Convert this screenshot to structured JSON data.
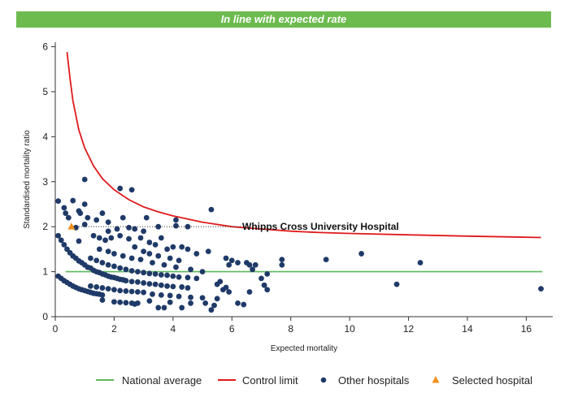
{
  "banner": {
    "text": "In line with expected rate",
    "color": "#6dbb4f"
  },
  "chart_data": {
    "type": "scatter",
    "title": "",
    "xlabel": "Expected mortality",
    "ylabel": "Standardised mortality ratio",
    "xlim": [
      0,
      16.9
    ],
    "ylim": [
      0,
      6.1
    ],
    "xticks": [
      0,
      2,
      4,
      6,
      8,
      10,
      12,
      14,
      16
    ],
    "yticks": [
      0,
      1,
      2,
      3,
      4,
      5,
      6
    ],
    "grid": false,
    "legend_position": "bottom",
    "national_average": {
      "name": "National average",
      "value": 1,
      "color": "#5cb85c"
    },
    "control_limit": {
      "name": "Control limit",
      "color": "#e0191b",
      "points": [
        [
          0.4,
          5.88
        ],
        [
          0.5,
          5.3
        ],
        [
          0.6,
          4.8
        ],
        [
          0.8,
          4.15
        ],
        [
          1.0,
          3.75
        ],
        [
          1.3,
          3.35
        ],
        [
          1.6,
          3.07
        ],
        [
          2.0,
          2.82
        ],
        [
          2.5,
          2.6
        ],
        [
          3.0,
          2.44
        ],
        [
          3.5,
          2.33
        ],
        [
          4.0,
          2.24
        ],
        [
          5.0,
          2.1
        ],
        [
          6.0,
          2.0
        ],
        [
          7.0,
          1.95
        ],
        [
          8.0,
          1.9
        ],
        [
          9.0,
          1.87
        ],
        [
          10.0,
          1.85
        ],
        [
          12.0,
          1.82
        ],
        [
          14.0,
          1.79
        ],
        [
          16.5,
          1.76
        ]
      ]
    },
    "series": [
      {
        "name": "Other hospitals",
        "color": "#1f3a68",
        "points": [
          [
            0.1,
            2.57
          ],
          [
            0.3,
            2.42
          ],
          [
            0.35,
            2.3
          ],
          [
            0.45,
            2.2
          ],
          [
            0.6,
            2.58
          ],
          [
            0.8,
            2.35
          ],
          [
            0.85,
            2.3
          ],
          [
            1.0,
            3.05
          ],
          [
            1.0,
            2.5
          ],
          [
            1.1,
            2.2
          ],
          [
            1.4,
            2.15
          ],
          [
            1.0,
            2.05
          ],
          [
            1.6,
            2.3
          ],
          [
            1.8,
            2.1
          ],
          [
            2.2,
            2.85
          ],
          [
            2.6,
            2.82
          ],
          [
            2.1,
            1.95
          ],
          [
            2.3,
            2.2
          ],
          [
            2.5,
            1.98
          ],
          [
            3.1,
            2.2
          ],
          [
            3.5,
            2.0
          ],
          [
            4.1,
            2.15
          ],
          [
            4.1,
            2.02
          ],
          [
            4.5,
            2.0
          ],
          [
            5.3,
            2.38
          ],
          [
            0.7,
            1.98
          ],
          [
            0.8,
            1.68
          ],
          [
            1.3,
            1.8
          ],
          [
            1.5,
            1.75
          ],
          [
            1.7,
            1.7
          ],
          [
            1.8,
            1.9
          ],
          [
            1.9,
            1.75
          ],
          [
            2.2,
            1.8
          ],
          [
            2.5,
            1.73
          ],
          [
            2.7,
            1.95
          ],
          [
            2.9,
            1.75
          ],
          [
            3.0,
            1.9
          ],
          [
            3.2,
            1.65
          ],
          [
            3.4,
            1.6
          ],
          [
            3.6,
            1.75
          ],
          [
            3.8,
            1.5
          ],
          [
            4.0,
            1.55
          ],
          [
            4.3,
            1.55
          ],
          [
            4.5,
            1.5
          ],
          [
            4.8,
            1.4
          ],
          [
            5.2,
            1.45
          ],
          [
            2.7,
            1.55
          ],
          [
            3.0,
            1.45
          ],
          [
            3.2,
            1.4
          ],
          [
            3.5,
            1.35
          ],
          [
            3.9,
            1.3
          ],
          [
            4.2,
            1.25
          ],
          [
            0.1,
            1.8
          ],
          [
            0.2,
            1.7
          ],
          [
            0.3,
            1.6
          ],
          [
            0.4,
            1.5
          ],
          [
            0.5,
            1.42
          ],
          [
            0.6,
            1.35
          ],
          [
            0.7,
            1.3
          ],
          [
            0.8,
            1.24
          ],
          [
            0.9,
            1.2
          ],
          [
            1.0,
            1.15
          ],
          [
            1.1,
            1.1
          ],
          [
            1.2,
            1.08
          ],
          [
            1.3,
            1.03
          ],
          [
            1.4,
            1.0
          ],
          [
            1.5,
            0.98
          ],
          [
            1.6,
            0.95
          ],
          [
            1.7,
            0.93
          ],
          [
            1.8,
            0.9
          ],
          [
            1.9,
            0.88
          ],
          [
            2.0,
            0.87
          ],
          [
            2.1,
            0.85
          ],
          [
            2.2,
            0.83
          ],
          [
            2.3,
            0.82
          ],
          [
            2.4,
            0.8
          ],
          [
            2.6,
            0.78
          ],
          [
            2.8,
            0.77
          ],
          [
            3.0,
            0.75
          ],
          [
            3.2,
            0.73
          ],
          [
            3.4,
            0.72
          ],
          [
            3.6,
            0.7
          ],
          [
            3.8,
            0.68
          ],
          [
            4.0,
            0.67
          ],
          [
            4.3,
            0.66
          ],
          [
            4.5,
            0.64
          ],
          [
            1.2,
            1.3
          ],
          [
            1.4,
            1.25
          ],
          [
            1.6,
            1.2
          ],
          [
            1.8,
            1.15
          ],
          [
            2.0,
            1.12
          ],
          [
            2.2,
            1.08
          ],
          [
            2.4,
            1.05
          ],
          [
            2.6,
            1.02
          ],
          [
            2.8,
            1.0
          ],
          [
            3.0,
            0.98
          ],
          [
            3.2,
            0.96
          ],
          [
            3.4,
            0.95
          ],
          [
            3.6,
            0.93
          ],
          [
            3.8,
            0.92
          ],
          [
            4.0,
            0.9
          ],
          [
            4.2,
            0.88
          ],
          [
            4.5,
            0.87
          ],
          [
            4.8,
            0.85
          ],
          [
            1.5,
            1.5
          ],
          [
            1.8,
            1.45
          ],
          [
            2.0,
            1.4
          ],
          [
            2.3,
            1.35
          ],
          [
            2.6,
            1.3
          ],
          [
            2.9,
            1.27
          ],
          [
            3.3,
            1.2
          ],
          [
            3.7,
            1.15
          ],
          [
            4.1,
            1.1
          ],
          [
            4.6,
            1.05
          ],
          [
            5.0,
            1.0
          ],
          [
            0.1,
            0.9
          ],
          [
            0.2,
            0.85
          ],
          [
            0.3,
            0.8
          ],
          [
            0.4,
            0.76
          ],
          [
            0.5,
            0.72
          ],
          [
            0.6,
            0.68
          ],
          [
            0.7,
            0.65
          ],
          [
            0.8,
            0.62
          ],
          [
            0.9,
            0.6
          ],
          [
            1.0,
            0.58
          ],
          [
            1.1,
            0.56
          ],
          [
            1.2,
            0.54
          ],
          [
            1.3,
            0.52
          ],
          [
            1.4,
            0.51
          ],
          [
            1.5,
            0.5
          ],
          [
            1.6,
            0.48
          ],
          [
            1.2,
            0.68
          ],
          [
            1.4,
            0.66
          ],
          [
            1.6,
            0.64
          ],
          [
            1.8,
            0.62
          ],
          [
            2.0,
            0.6
          ],
          [
            2.2,
            0.58
          ],
          [
            2.4,
            0.57
          ],
          [
            2.6,
            0.56
          ],
          [
            2.8,
            0.55
          ],
          [
            3.0,
            0.54
          ],
          [
            3.3,
            0.5
          ],
          [
            3.6,
            0.48
          ],
          [
            3.9,
            0.47
          ],
          [
            4.2,
            0.45
          ],
          [
            4.6,
            0.43
          ],
          [
            5.0,
            0.42
          ],
          [
            1.6,
            0.37
          ],
          [
            2.0,
            0.33
          ],
          [
            2.2,
            0.32
          ],
          [
            2.4,
            0.31
          ],
          [
            2.6,
            0.3
          ],
          [
            2.7,
            0.28
          ],
          [
            2.8,
            0.3
          ],
          [
            3.5,
            0.2
          ],
          [
            3.7,
            0.2
          ],
          [
            4.3,
            0.2
          ],
          [
            3.2,
            0.35
          ],
          [
            3.9,
            0.32
          ],
          [
            4.6,
            0.3
          ],
          [
            5.1,
            0.3
          ],
          [
            5.6,
            0.78
          ],
          [
            5.5,
            0.72
          ],
          [
            5.8,
            0.65
          ],
          [
            5.9,
            0.55
          ],
          [
            5.7,
            0.6
          ],
          [
            5.5,
            0.4
          ],
          [
            5.4,
            0.25
          ],
          [
            5.3,
            0.15
          ],
          [
            5.8,
            1.3
          ],
          [
            5.9,
            1.15
          ],
          [
            6.0,
            1.25
          ],
          [
            6.2,
            1.2
          ],
          [
            6.5,
            1.2
          ],
          [
            6.6,
            1.15
          ],
          [
            6.7,
            1.05
          ],
          [
            6.8,
            1.15
          ],
          [
            6.6,
            0.55
          ],
          [
            6.2,
            0.3
          ],
          [
            6.4,
            0.27
          ],
          [
            7.0,
            0.85
          ],
          [
            7.2,
            0.95
          ],
          [
            7.1,
            0.7
          ],
          [
            7.2,
            0.6
          ],
          [
            7.7,
            1.27
          ],
          [
            7.7,
            1.15
          ],
          [
            9.2,
            1.27
          ],
          [
            10.4,
            1.4
          ],
          [
            11.6,
            0.72
          ],
          [
            12.4,
            1.2
          ],
          [
            16.5,
            0.62
          ]
        ]
      },
      {
        "name": "Selected hospital",
        "color": "#f0901c",
        "points": [
          [
            0.55,
            2.0
          ]
        ]
      }
    ],
    "annotation": {
      "label": "Whipps Cross University Hospital",
      "x": 0.55,
      "y": 2.0
    },
    "legend": [
      {
        "label": "National average",
        "type": "line",
        "color": "#5cb85c"
      },
      {
        "label": "Control limit",
        "type": "line",
        "color": "#e0191b"
      },
      {
        "label": "Other hospitals",
        "type": "dot",
        "color": "#1f3a68"
      },
      {
        "label": "Selected hospital",
        "type": "triangle",
        "color": "#f0901c"
      }
    ]
  }
}
